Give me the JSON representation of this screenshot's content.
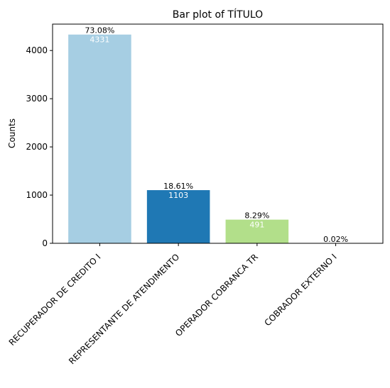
{
  "chart_data": {
    "type": "bar",
    "title": "Bar plot of TÍTULO",
    "xlabel": "",
    "ylabel": "Counts",
    "ylim": [
      0,
      4547.55
    ],
    "yticks": [
      0,
      1000,
      2000,
      3000,
      4000
    ],
    "categories": [
      "RECUPERADOR DE CREDITO I",
      "REPRESENTANTE DE ATENDIMENTO",
      "OPERADOR COBRANCA TR",
      "COBRADOR EXTERNO I"
    ],
    "values": [
      4331,
      1103,
      491,
      1
    ],
    "value_labels": [
      "4331",
      "1103",
      "491",
      ""
    ],
    "percent_labels": [
      "73.08%",
      "18.61%",
      "8.29%",
      "0.02%"
    ],
    "colors": [
      "#a6cee3",
      "#1f78b4",
      "#b2df8a",
      "#33a02c"
    ],
    "grid": false,
    "legend": "none"
  }
}
